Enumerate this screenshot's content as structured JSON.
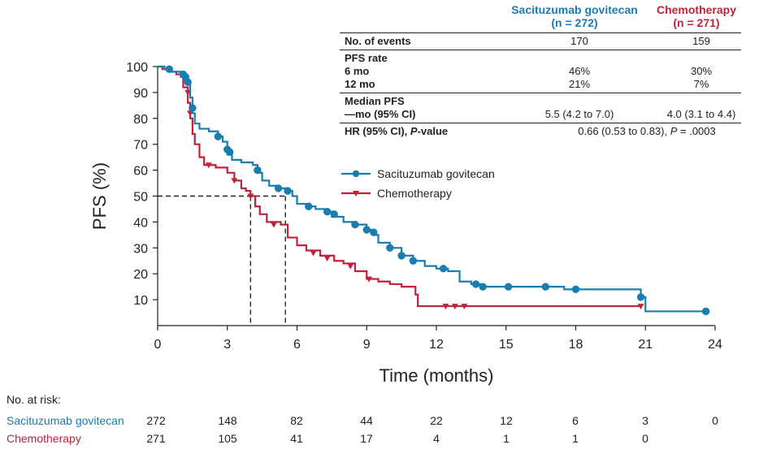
{
  "table": {
    "header_sg": "Sacituzumab govitecan",
    "header_sg_n": "(n = 272)",
    "header_ch": "Chemotherapy",
    "header_ch_n": "(n = 271)",
    "events_label": "No. of events",
    "events_sg": "170",
    "events_ch": "159",
    "pfs_rate_label": "PFS rate",
    "six_mo_label": "6 mo",
    "six_mo_sg": "46%",
    "six_mo_ch": "30%",
    "twelve_mo_label": "12 mo",
    "twelve_mo_sg": "21%",
    "twelve_mo_ch": "7%",
    "median_label": "Median PFS",
    "median_sub_label": "—mo (95% CI)",
    "median_sg": "5.5 (4.2 to 7.0)",
    "median_ch": "4.0 (3.1 to 4.4)",
    "hr_label_prefix": "HR (95% CI), ",
    "hr_label_italic": "P",
    "hr_label_suffix": "-value",
    "hr_value_prefix": "0.66 (0.53 to 0.83), ",
    "hr_value_italic": "P",
    "hr_value_suffix": " = .0003"
  },
  "risk": {
    "title": "No. at risk:",
    "sg_label": "Sacituzumab govitecan",
    "ch_label": "Chemotherapy",
    "sg_values": [
      "272",
      "148",
      "82",
      "44",
      "22",
      "12",
      "6",
      "3",
      "0"
    ],
    "ch_values": [
      "271",
      "105",
      "41",
      "17",
      "4",
      "1",
      "1",
      "0",
      ""
    ]
  },
  "colors": {
    "sg": "#1a7db0",
    "ch": "#c0223a"
  },
  "chart_data": {
    "type": "line",
    "xlabel": "Time (months)",
    "ylabel": "PFS (%)",
    "xlim": [
      0,
      24
    ],
    "ylim": [
      0,
      100
    ],
    "xticks": [
      "0",
      "3",
      "6",
      "9",
      "12",
      "15",
      "18",
      "21",
      "24"
    ],
    "yticks": [
      "10",
      "20",
      "30",
      "40",
      "50",
      "60",
      "70",
      "80",
      "90",
      "100"
    ],
    "legend": [
      "Sacituzumab govitecan",
      "Chemotherapy"
    ],
    "median_reference": {
      "y": 50,
      "x_ch": 4.0,
      "x_sg": 5.5
    },
    "series": [
      {
        "name": "Sacituzumab govitecan",
        "step_points": [
          [
            0,
            100
          ],
          [
            0.3,
            99
          ],
          [
            0.6,
            98
          ],
          [
            1.0,
            97
          ],
          [
            1.2,
            96
          ],
          [
            1.3,
            93
          ],
          [
            1.4,
            88
          ],
          [
            1.5,
            82
          ],
          [
            1.6,
            78
          ],
          [
            1.8,
            76
          ],
          [
            2.2,
            75
          ],
          [
            2.6,
            73
          ],
          [
            2.8,
            71
          ],
          [
            3.0,
            66
          ],
          [
            3.2,
            64
          ],
          [
            3.6,
            63
          ],
          [
            4.1,
            62
          ],
          [
            4.3,
            59
          ],
          [
            4.5,
            56
          ],
          [
            4.8,
            54
          ],
          [
            5.2,
            53
          ],
          [
            5.5,
            52
          ],
          [
            5.8,
            50
          ],
          [
            6.0,
            47
          ],
          [
            6.4,
            46
          ],
          [
            6.8,
            45
          ],
          [
            7.2,
            44
          ],
          [
            7.5,
            42
          ],
          [
            8.0,
            40
          ],
          [
            8.5,
            39
          ],
          [
            9.0,
            37
          ],
          [
            9.3,
            35
          ],
          [
            9.5,
            32
          ],
          [
            10.0,
            30
          ],
          [
            10.5,
            27
          ],
          [
            11.0,
            25
          ],
          [
            11.5,
            23
          ],
          [
            12.0,
            22
          ],
          [
            12.5,
            21
          ],
          [
            13.0,
            17
          ],
          [
            13.5,
            16
          ],
          [
            14.0,
            15
          ],
          [
            17.0,
            15
          ],
          [
            17.5,
            14
          ],
          [
            20.5,
            14
          ],
          [
            20.8,
            11
          ],
          [
            21.0,
            5.5
          ],
          [
            23.6,
            5.5
          ]
        ],
        "censor_points": [
          [
            0.5,
            99
          ],
          [
            1.1,
            97
          ],
          [
            1.2,
            96
          ],
          [
            1.3,
            94
          ],
          [
            1.5,
            84
          ],
          [
            2.6,
            73
          ],
          [
            3.0,
            68
          ],
          [
            3.1,
            67
          ],
          [
            4.3,
            60
          ],
          [
            5.2,
            53
          ],
          [
            5.6,
            52
          ],
          [
            6.5,
            46
          ],
          [
            7.3,
            44
          ],
          [
            7.6,
            43
          ],
          [
            8.5,
            39
          ],
          [
            9.0,
            37
          ],
          [
            9.3,
            36
          ],
          [
            10.0,
            30
          ],
          [
            10.5,
            27
          ],
          [
            11.0,
            25
          ],
          [
            12.3,
            22
          ],
          [
            13.7,
            16
          ],
          [
            14.0,
            15
          ],
          [
            15.1,
            15
          ],
          [
            16.7,
            15
          ],
          [
            18.0,
            14
          ],
          [
            20.8,
            11
          ],
          [
            23.6,
            5.5
          ]
        ]
      },
      {
        "name": "Chemotherapy",
        "step_points": [
          [
            0,
            100
          ],
          [
            0.2,
            99
          ],
          [
            0.5,
            98
          ],
          [
            0.8,
            97
          ],
          [
            1.0,
            96
          ],
          [
            1.1,
            92
          ],
          [
            1.3,
            86
          ],
          [
            1.4,
            80
          ],
          [
            1.5,
            74
          ],
          [
            1.6,
            70
          ],
          [
            1.8,
            65
          ],
          [
            2.0,
            62
          ],
          [
            2.5,
            61
          ],
          [
            3.0,
            59
          ],
          [
            3.3,
            56
          ],
          [
            3.6,
            53
          ],
          [
            3.8,
            52
          ],
          [
            4.0,
            50
          ],
          [
            4.2,
            46
          ],
          [
            4.4,
            43
          ],
          [
            4.7,
            40
          ],
          [
            5.3,
            39
          ],
          [
            5.6,
            34
          ],
          [
            6.0,
            31
          ],
          [
            6.4,
            29
          ],
          [
            7.0,
            27
          ],
          [
            7.6,
            25
          ],
          [
            8.0,
            24
          ],
          [
            8.5,
            21
          ],
          [
            9.0,
            18
          ],
          [
            9.5,
            17
          ],
          [
            10.0,
            16
          ],
          [
            10.5,
            15
          ],
          [
            11.1,
            12
          ],
          [
            11.2,
            7.5
          ],
          [
            20.8,
            7.5
          ]
        ],
        "censor_points": [
          [
            1.3,
            90
          ],
          [
            1.4,
            82
          ],
          [
            2.2,
            62
          ],
          [
            3.3,
            56
          ],
          [
            4.0,
            50
          ],
          [
            5.0,
            39
          ],
          [
            6.7,
            28
          ],
          [
            7.3,
            26
          ],
          [
            8.3,
            23
          ],
          [
            9.1,
            18
          ],
          [
            12.4,
            7.5
          ],
          [
            12.8,
            7.5
          ],
          [
            13.2,
            7.5
          ],
          [
            20.8,
            7.5
          ]
        ]
      }
    ]
  }
}
